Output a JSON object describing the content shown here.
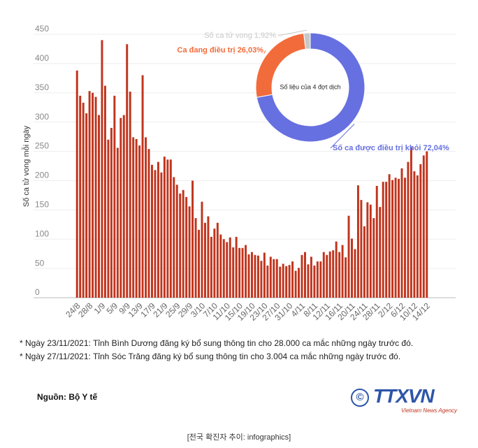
{
  "chart_data": [
    {
      "type": "bar",
      "y_label": "Số ca tử vong mỗi ngày",
      "color": "#c0341d",
      "ylim": [
        0,
        450
      ],
      "yticks": [
        0,
        50,
        100,
        150,
        200,
        250,
        300,
        350,
        400,
        450
      ],
      "grid": true,
      "categories": [
        "24/8",
        null,
        null,
        null,
        "28/8",
        null,
        null,
        null,
        "1/9",
        null,
        null,
        null,
        "5/9",
        null,
        null,
        null,
        "9/9",
        null,
        null,
        null,
        "13/9",
        null,
        null,
        null,
        "17/9",
        null,
        null,
        null,
        "21/9",
        null,
        null,
        null,
        "25/9",
        null,
        null,
        null,
        "29/9",
        null,
        null,
        null,
        "3/10",
        null,
        null,
        null,
        "7/10",
        null,
        null,
        null,
        "11/10",
        null,
        null,
        null,
        "15/10",
        null,
        null,
        null,
        "19/10",
        null,
        null,
        null,
        "23/10",
        null,
        null,
        null,
        "27/10",
        null,
        null,
        null,
        "31/10",
        null,
        null,
        null,
        "4/11",
        null,
        null,
        null,
        "8/11",
        null,
        null,
        null,
        "12/11",
        null,
        null,
        null,
        "16/11",
        null,
        null,
        null,
        "20/11",
        null,
        null,
        null,
        "24/11",
        null,
        null,
        null,
        "28/11",
        null,
        null,
        null,
        "2/12",
        null,
        null,
        null,
        "6/12",
        null,
        null,
        null,
        "10/12",
        null,
        null,
        null,
        "14/12"
      ],
      "values": [
        388,
        345,
        333,
        315,
        353,
        350,
        343,
        312,
        440,
        362,
        270,
        290,
        345,
        256,
        307,
        312,
        433,
        352,
        274,
        271,
        260,
        380,
        274,
        254,
        227,
        218,
        232,
        214,
        241,
        236,
        236,
        206,
        193,
        178,
        184,
        172,
        156,
        200,
        136,
        116,
        164,
        128,
        139,
        104,
        118,
        128,
        108,
        100,
        95,
        103,
        86,
        104,
        85,
        85,
        90,
        74,
        78,
        73,
        72,
        63,
        77,
        55,
        70,
        66,
        66,
        53,
        58,
        54,
        56,
        62,
        46,
        51,
        73,
        78,
        57,
        70,
        55,
        62,
        62,
        78,
        73,
        79,
        81,
        96,
        78,
        90,
        69,
        140,
        101,
        83,
        192,
        167,
        122,
        163,
        159,
        136,
        191,
        155,
        198,
        198,
        211,
        201,
        205,
        203,
        221,
        205,
        232,
        257,
        216,
        209,
        228,
        243,
        250
      ]
    },
    {
      "type": "pie",
      "center_label": "Số liệu của 4 đợt dịch",
      "categories": [
        "Số ca được điều trị khỏi",
        "Ca đang điều trị",
        "Số ca tử vong"
      ],
      "values": [
        72.04,
        26.03,
        1.92
      ],
      "value_labels": [
        "72,04%",
        "26,03%",
        "1,92%"
      ],
      "colors": [
        "#6670e0",
        "#f26b3a",
        "#c8c8c8"
      ]
    }
  ],
  "notes": [
    "* Ngày 23/11/2021: Tỉnh Bình Dương đăng ký bổ sung thông tin cho 28.000 ca mắc những ngày trước đó.",
    "* Ngày 27/11/2021: Tỉnh Sóc Trăng đăng ký bổ sung thông tin cho 3.004 ca mắc những ngày trước đó."
  ],
  "source": "Nguồn: Bộ Y tế",
  "logo": {
    "name": "TTXVN",
    "subtitle": "Vietnam News Agency"
  },
  "caption": "[전국 확진자 추이: infographics]"
}
